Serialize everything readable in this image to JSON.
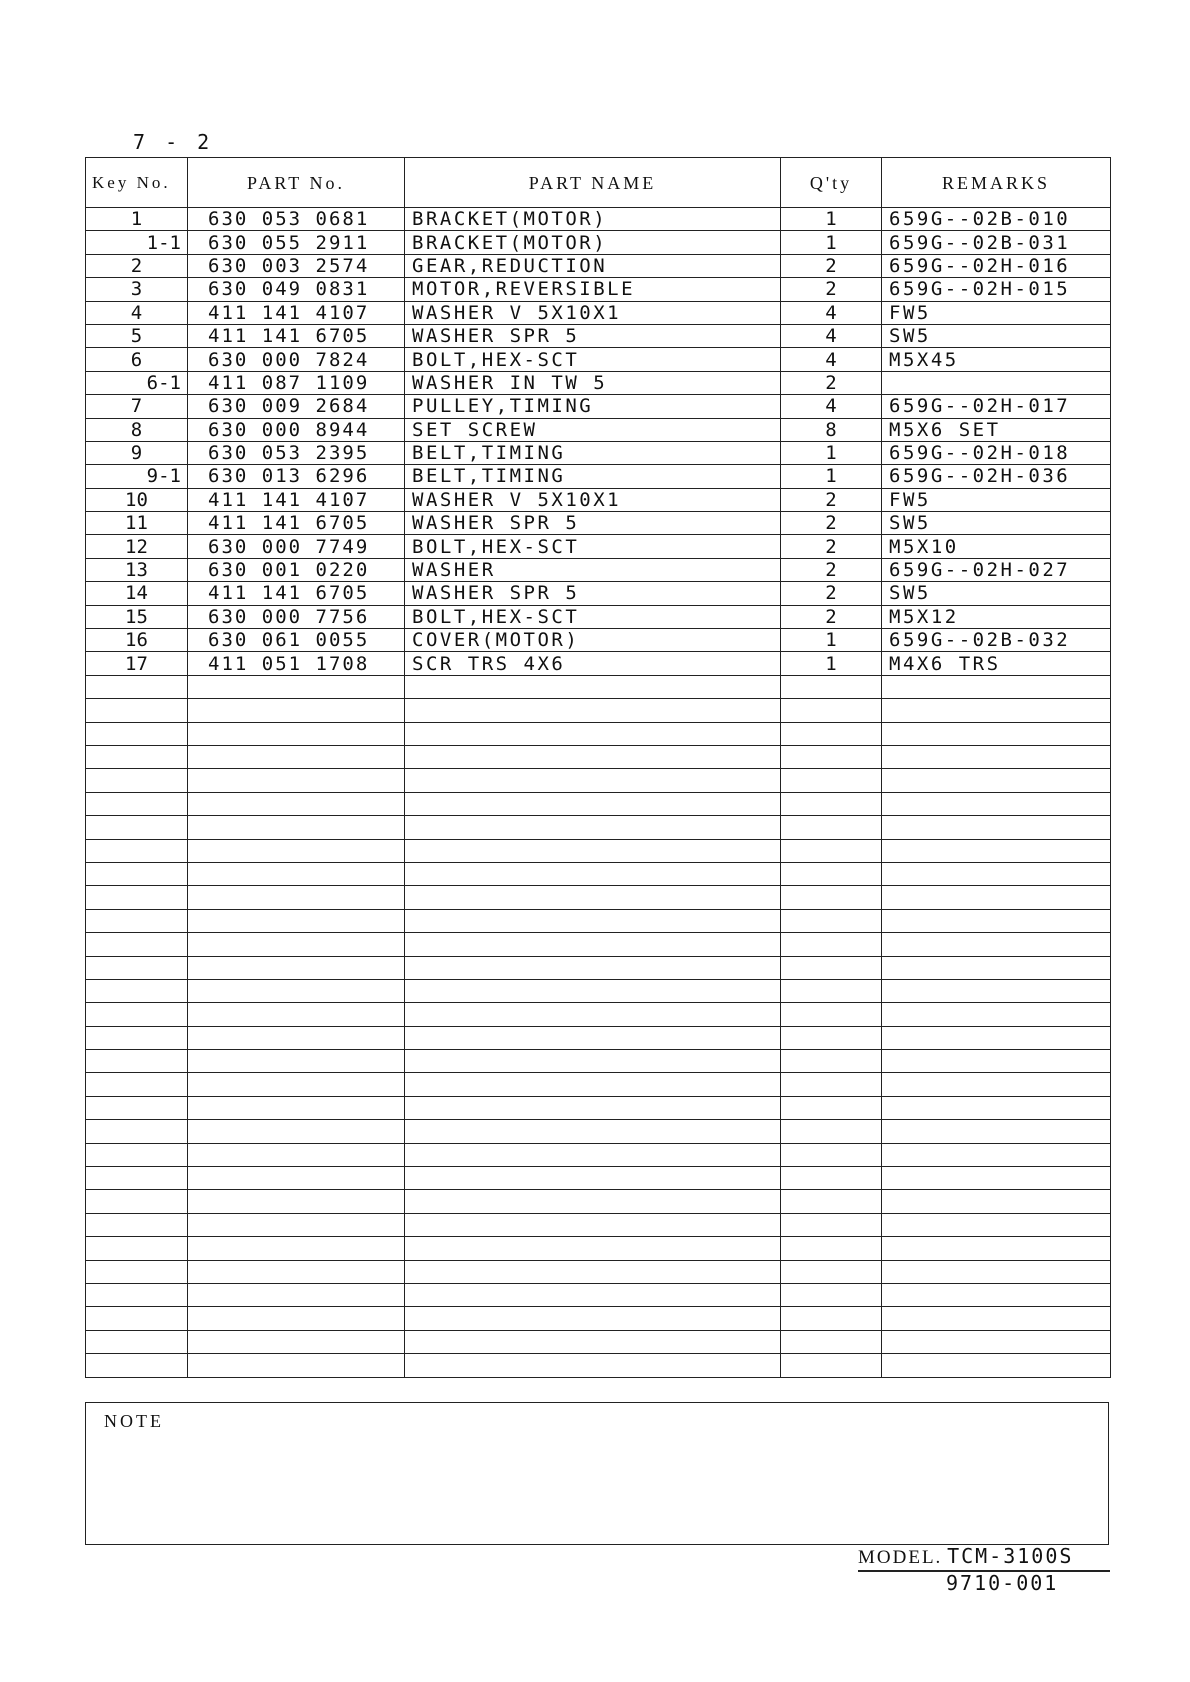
{
  "page_number": "7 - 2",
  "table": {
    "headers": {
      "key": "Key No.",
      "part_no": "PART No.",
      "part_name": "PART NAME",
      "qty": "Q'ty",
      "remarks": "REMARKS"
    },
    "rows": [
      {
        "key": "1",
        "part_no": "630 053 0681",
        "part_name": "BRACKET(MOTOR)",
        "qty": "1",
        "remarks": "659G--02B-010"
      },
      {
        "key": "1-1",
        "part_no": "630 055 2911",
        "part_name": "BRACKET(MOTOR)",
        "qty": "1",
        "remarks": "659G--02B-031"
      },
      {
        "key": "2",
        "part_no": "630 003 2574",
        "part_name": "GEAR,REDUCTION",
        "qty": "2",
        "remarks": "659G--02H-016"
      },
      {
        "key": "3",
        "part_no": "630 049 0831",
        "part_name": "MOTOR,REVERSIBLE",
        "qty": "2",
        "remarks": "659G--02H-015"
      },
      {
        "key": "4",
        "part_no": "411 141 4107",
        "part_name": "WASHER V 5X10X1",
        "qty": "4",
        "remarks": "FW5"
      },
      {
        "key": "5",
        "part_no": "411 141 6705",
        "part_name": "WASHER SPR 5",
        "qty": "4",
        "remarks": "SW5"
      },
      {
        "key": "6",
        "part_no": "630 000 7824",
        "part_name": "BOLT,HEX-SCT",
        "qty": "4",
        "remarks": "M5X45"
      },
      {
        "key": "6-1",
        "part_no": "411 087 1109",
        "part_name": "WASHER IN TW 5",
        "qty": "2",
        "remarks": ""
      },
      {
        "key": "7",
        "part_no": "630 009 2684",
        "part_name": "PULLEY,TIMING",
        "qty": "4",
        "remarks": "659G--02H-017"
      },
      {
        "key": "8",
        "part_no": "630 000 8944",
        "part_name": "SET SCREW",
        "qty": "8",
        "remarks": "M5X6 SET"
      },
      {
        "key": "9",
        "part_no": "630 053 2395",
        "part_name": "BELT,TIMING",
        "qty": "1",
        "remarks": "659G--02H-018"
      },
      {
        "key": "9-1",
        "part_no": "630 013 6296",
        "part_name": "BELT,TIMING",
        "qty": "1",
        "remarks": "659G--02H-036"
      },
      {
        "key": "10",
        "part_no": "411 141 4107",
        "part_name": "WASHER V 5X10X1",
        "qty": "2",
        "remarks": "FW5"
      },
      {
        "key": "11",
        "part_no": "411 141 6705",
        "part_name": "WASHER SPR 5",
        "qty": "2",
        "remarks": "SW5"
      },
      {
        "key": "12",
        "part_no": "630 000 7749",
        "part_name": "BOLT,HEX-SCT",
        "qty": "2",
        "remarks": "M5X10"
      },
      {
        "key": "13",
        "part_no": "630 001 0220",
        "part_name": "WASHER",
        "qty": "2",
        "remarks": "659G--02H-027"
      },
      {
        "key": "14",
        "part_no": "411 141 6705",
        "part_name": "WASHER SPR 5",
        "qty": "2",
        "remarks": "SW5"
      },
      {
        "key": "15",
        "part_no": "630 000 7756",
        "part_name": "BOLT,HEX-SCT",
        "qty": "2",
        "remarks": "M5X12"
      },
      {
        "key": "16",
        "part_no": "630 061 0055",
        "part_name": "COVER(MOTOR)",
        "qty": "1",
        "remarks": "659G--02B-032"
      },
      {
        "key": "17",
        "part_no": "411 051 1708",
        "part_name": "SCR TRS 4X6",
        "qty": "1",
        "remarks": "M4X6 TRS"
      }
    ]
  },
  "note_label": "NOTE",
  "footer": {
    "model_label": "MODEL.",
    "model_value": "TCM-3100S",
    "doc_number": "9710-001"
  }
}
